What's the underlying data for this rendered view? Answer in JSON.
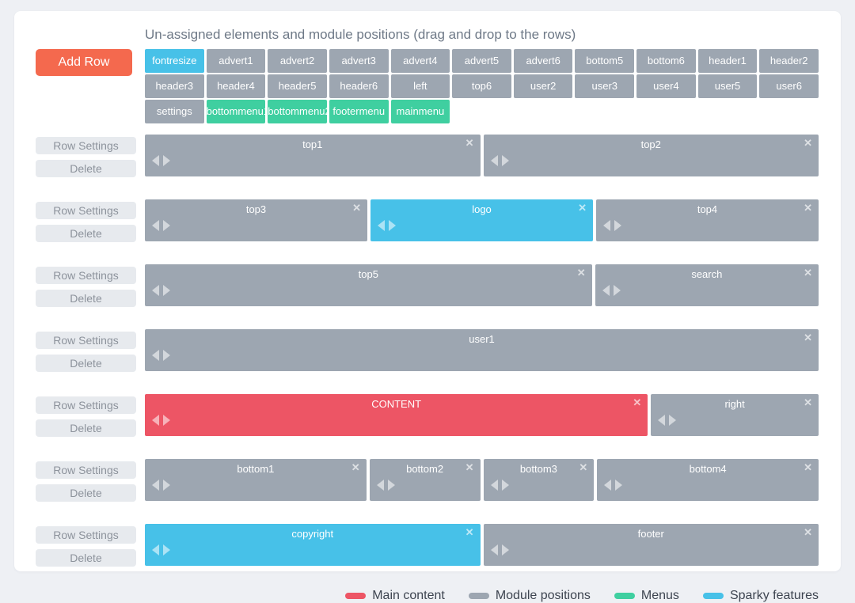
{
  "page": {
    "heading": "Un-assigned elements and module positions (drag and drop to the rows)",
    "add_row_label": "Add Row",
    "row_settings_label": "Row Settings",
    "delete_label": "Delete",
    "remove_icon_glyph": "✕"
  },
  "colors": {
    "main": "#ed5565",
    "module": "#9da6b1",
    "menu": "#3fcfa0",
    "sparky": "#47c1e8",
    "add_row": "#f4694e"
  },
  "unassigned": {
    "chips": [
      {
        "label": "fontresize",
        "type": "sparky"
      },
      {
        "label": "advert1",
        "type": "module"
      },
      {
        "label": "advert2",
        "type": "module"
      },
      {
        "label": "advert3",
        "type": "module"
      },
      {
        "label": "advert4",
        "type": "module"
      },
      {
        "label": "advert5",
        "type": "module"
      },
      {
        "label": "advert6",
        "type": "module"
      },
      {
        "label": "bottom5",
        "type": "module"
      },
      {
        "label": "bottom6",
        "type": "module"
      },
      {
        "label": "header1",
        "type": "module"
      },
      {
        "label": "header2",
        "type": "module"
      },
      {
        "label": "header3",
        "type": "module"
      },
      {
        "label": "header4",
        "type": "module"
      },
      {
        "label": "header5",
        "type": "module"
      },
      {
        "label": "header6",
        "type": "module"
      },
      {
        "label": "left",
        "type": "module"
      },
      {
        "label": "top6",
        "type": "module"
      },
      {
        "label": "user2",
        "type": "module"
      },
      {
        "label": "user3",
        "type": "module"
      },
      {
        "label": "user4",
        "type": "module"
      },
      {
        "label": "user5",
        "type": "module"
      },
      {
        "label": "user6",
        "type": "module"
      },
      {
        "label": "settings",
        "type": "module"
      },
      {
        "label": "bottommenu1",
        "type": "menu"
      },
      {
        "label": "bottommenu2",
        "type": "menu"
      },
      {
        "label": "footermenu",
        "type": "menu"
      },
      {
        "label": "mainmenu",
        "type": "menu"
      }
    ]
  },
  "rows": [
    {
      "blocks": [
        {
          "label": "top1",
          "type": "module",
          "flex": 1
        },
        {
          "label": "top2",
          "type": "module",
          "flex": 1
        }
      ]
    },
    {
      "blocks": [
        {
          "label": "top3",
          "type": "module",
          "flex": 1
        },
        {
          "label": "logo",
          "type": "sparky",
          "flex": 1
        },
        {
          "label": "top4",
          "type": "module",
          "flex": 1
        }
      ]
    },
    {
      "blocks": [
        {
          "label": "top5",
          "type": "module",
          "flex": 2
        },
        {
          "label": "search",
          "type": "module",
          "flex": 1
        }
      ]
    },
    {
      "blocks": [
        {
          "label": "user1",
          "type": "module",
          "flex": 1
        }
      ]
    },
    {
      "blocks": [
        {
          "label": "CONTENT",
          "type": "main",
          "flex": 3
        },
        {
          "label": "right",
          "type": "module",
          "flex": 1
        }
      ]
    },
    {
      "blocks": [
        {
          "label": "bottom1",
          "type": "module",
          "flex": 2
        },
        {
          "label": "bottom2",
          "type": "module",
          "flex": 1
        },
        {
          "label": "bottom3",
          "type": "module",
          "flex": 1
        },
        {
          "label": "bottom4",
          "type": "module",
          "flex": 2
        }
      ]
    },
    {
      "blocks": [
        {
          "label": "copyright",
          "type": "sparky",
          "flex": 1
        },
        {
          "label": "footer",
          "type": "module",
          "flex": 1
        }
      ]
    }
  ],
  "legend": [
    {
      "label": "Main content",
      "type": "main"
    },
    {
      "label": "Module positions",
      "type": "module"
    },
    {
      "label": "Menus",
      "type": "menu"
    },
    {
      "label": "Sparky features",
      "type": "sparky"
    }
  ]
}
